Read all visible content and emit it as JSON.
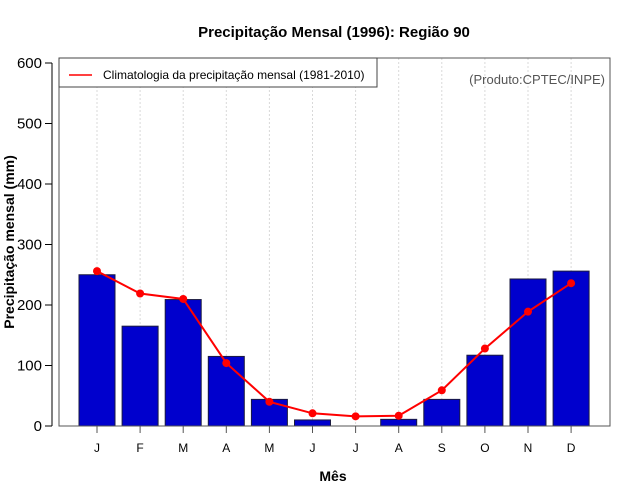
{
  "chart_data": {
    "type": "bar",
    "title": "Precipitação Mensal (1996): Região 90",
    "xlabel": "Mês",
    "ylabel": "Precipitação mensal (mm)",
    "ylim": [
      0,
      600
    ],
    "yticks": [
      "0",
      "100",
      "200",
      "300",
      "400",
      "500",
      "600"
    ],
    "categories": [
      "J",
      "F",
      "M",
      "A",
      "M",
      "J",
      "J",
      "A",
      "S",
      "O",
      "N",
      "D"
    ],
    "grid": "vertical dotted",
    "series": [
      {
        "name": "Precipitação mensal (1996)",
        "type": "bar",
        "color": "#0000CD",
        "values": [
          250,
          165,
          209,
          115,
          44,
          10,
          0,
          11,
          44,
          117,
          243,
          256
        ]
      },
      {
        "name": "Climatologia da precipitação mensal (1981-2010)",
        "type": "line",
        "color": "#FF0000",
        "values": [
          256,
          219,
          210,
          104,
          40,
          21,
          16,
          17,
          59,
          128,
          189,
          236
        ]
      }
    ],
    "legend": {
      "placement": "top-left",
      "entries": [
        "Climatologia da precipitação mensal (1981-2010)"
      ]
    },
    "annotation": "(Produto:CPTEC/INPE)"
  }
}
